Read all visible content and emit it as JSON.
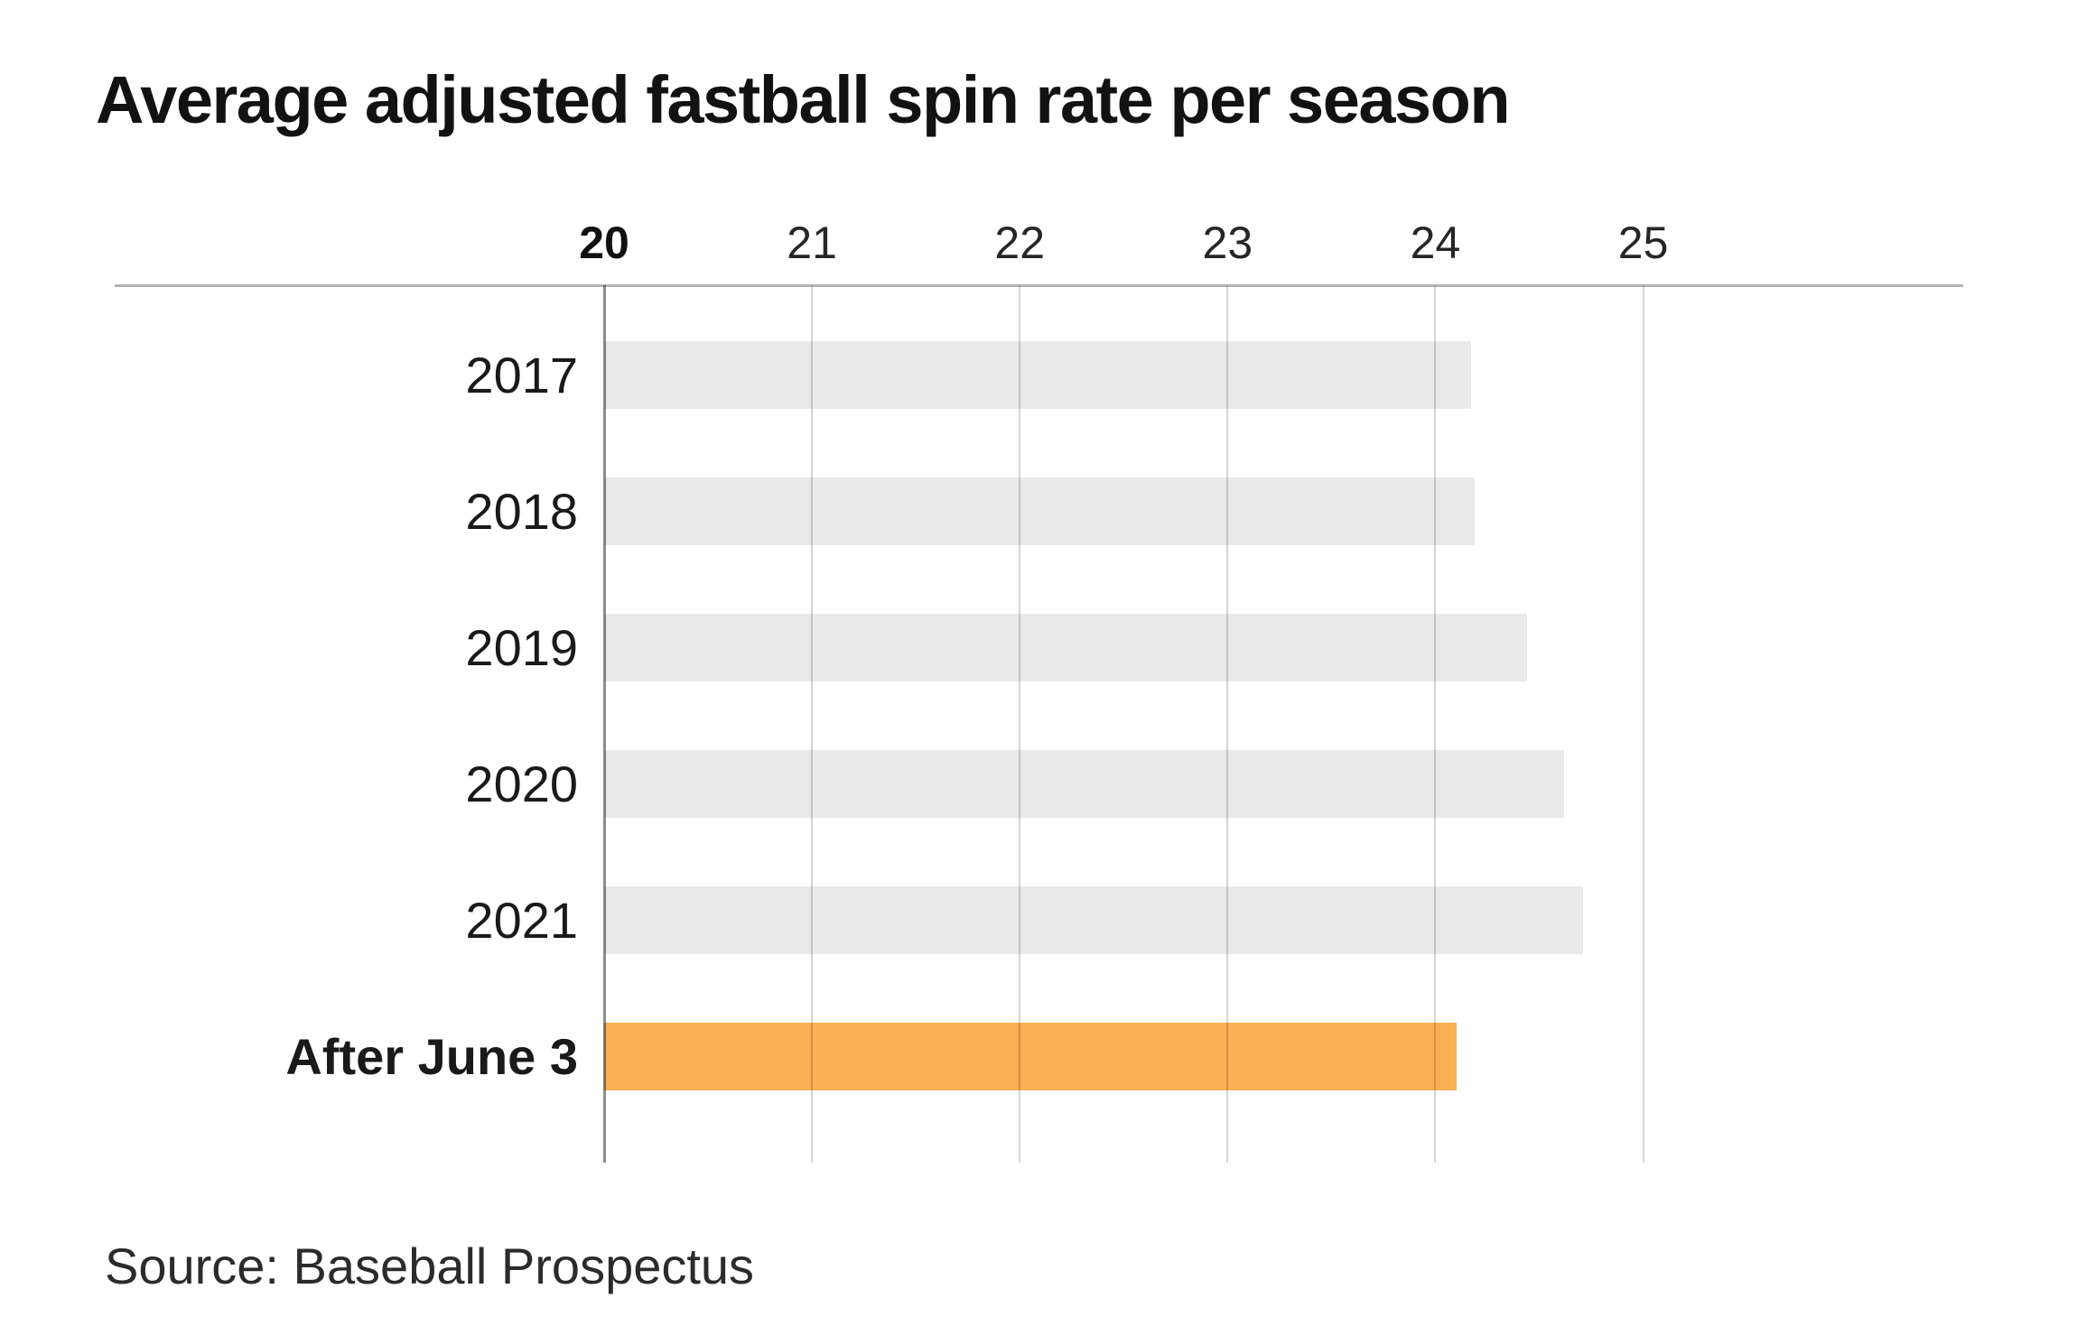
{
  "title": "Average adjusted fastball spin rate per season",
  "source": "Source: Baseball Prospectus",
  "chart_data": {
    "type": "bar",
    "orientation": "horizontal",
    "title": "Average adjusted fastball spin rate per season",
    "xlabel": "",
    "ylabel": "",
    "categories": [
      "2017",
      "2018",
      "2019",
      "2020",
      "2021",
      "After June 3"
    ],
    "values": [
      24.17,
      24.19,
      24.44,
      24.62,
      24.71,
      24.1
    ],
    "highlight_index": 5,
    "highlight_category_bold": true,
    "x_ticks": [
      20,
      21,
      22,
      23,
      24,
      25
    ],
    "bold_tick": 20,
    "xlim": [
      20,
      26.54
    ],
    "grid": true,
    "legend": "none",
    "colors": {
      "bar": "#e9e9e9",
      "highlight": "#f8b053",
      "gridline": "#d4d4d4",
      "axis_line": "#8a8a8a",
      "top_rule": "#b4b4b4",
      "text": "#1a1a1a"
    },
    "source_note": "Source: Baseball Prospectus"
  }
}
